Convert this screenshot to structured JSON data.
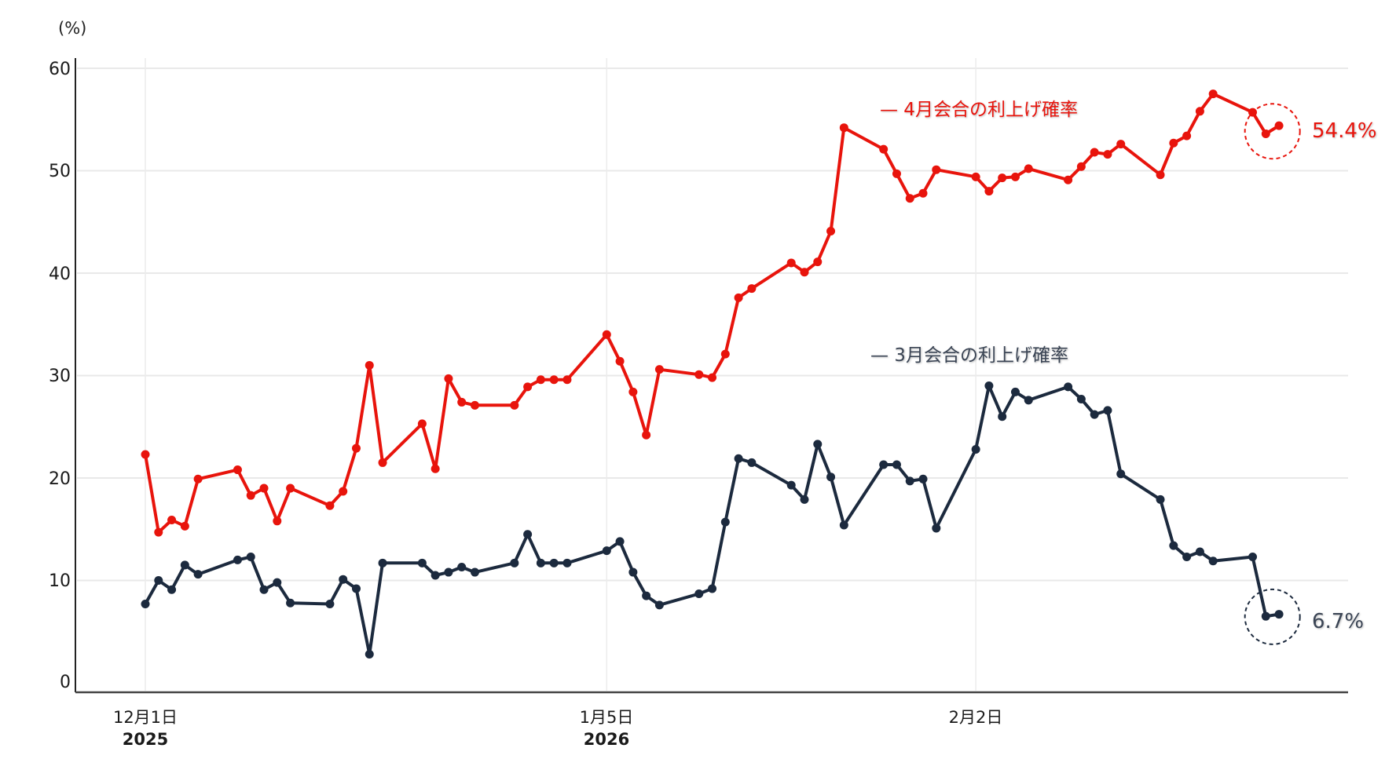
{
  "chart_data": {
    "type": "line",
    "title": "",
    "ylabel": "(%)",
    "xlabel": "",
    "ylim": [
      0,
      60
    ],
    "yticks": [
      0,
      10,
      20,
      30,
      40,
      50,
      60
    ],
    "grid": true,
    "xticks": [
      {
        "label": "12月1日",
        "year": "2025",
        "day_index": 0
      },
      {
        "label": "1月5日",
        "year": "2026",
        "day_index": 35
      },
      {
        "label": "2月2日",
        "year": "",
        "day_index": 63
      }
    ],
    "x": [
      "2025-12-01",
      "2025-12-02",
      "2025-12-03",
      "2025-12-04",
      "2025-12-05",
      "2025-12-08",
      "2025-12-09",
      "2025-12-10",
      "2025-12-11",
      "2025-12-12",
      "2025-12-15",
      "2025-12-16",
      "2025-12-17",
      "2025-12-18",
      "2025-12-19",
      "2025-12-22",
      "2025-12-23",
      "2025-12-24",
      "2025-12-25",
      "2025-12-26",
      "2025-12-29",
      "2025-12-30",
      "2025-12-31",
      "2026-01-01",
      "2026-01-02",
      "2026-01-05",
      "2026-01-06",
      "2026-01-07",
      "2026-01-08",
      "2026-01-09",
      "2026-01-12",
      "2026-01-13",
      "2026-01-14",
      "2026-01-15",
      "2026-01-16",
      "2026-01-19",
      "2026-01-20",
      "2026-01-21",
      "2026-01-22",
      "2026-01-23",
      "2026-01-26",
      "2026-01-27",
      "2026-01-28",
      "2026-01-29",
      "2026-01-30",
      "2026-02-02",
      "2026-02-03",
      "2026-02-04",
      "2026-02-05",
      "2026-02-06",
      "2026-02-09",
      "2026-02-10",
      "2026-02-11",
      "2026-02-12",
      "2026-02-13",
      "2026-02-16",
      "2026-02-17",
      "2026-02-18",
      "2026-02-19",
      "2026-02-20",
      "2026-02-23",
      "2026-02-24",
      "2026-02-25"
    ],
    "day_index": [
      0,
      1,
      2,
      3,
      4,
      7,
      8,
      9,
      10,
      11,
      14,
      15,
      16,
      17,
      18,
      21,
      22,
      23,
      24,
      25,
      28,
      29,
      30,
      31,
      32,
      35,
      36,
      37,
      38,
      39,
      42,
      43,
      44,
      45,
      46,
      49,
      50,
      51,
      52,
      53,
      56,
      57,
      58,
      59,
      60,
      63,
      64,
      65,
      66,
      67,
      70,
      71,
      72,
      73,
      74,
      77,
      78,
      79,
      80,
      81,
      84,
      85,
      86
    ],
    "series": [
      {
        "name": "4月会合の利上げ確率",
        "color": "#e8140c",
        "end_label": "54.4%",
        "values": [
          22.3,
          14.7,
          15.9,
          15.3,
          19.9,
          20.8,
          18.3,
          19.0,
          15.8,
          19.0,
          17.3,
          18.7,
          22.9,
          31.0,
          21.5,
          25.3,
          20.9,
          29.7,
          27.4,
          27.1,
          27.1,
          28.9,
          29.6,
          29.6,
          29.6,
          34.0,
          31.4,
          28.4,
          24.2,
          30.6,
          30.1,
          29.8,
          32.1,
          37.6,
          38.5,
          41.0,
          40.1,
          41.1,
          44.1,
          54.2,
          52.1,
          49.7,
          47.3,
          47.8,
          50.1,
          49.4,
          48.0,
          49.3,
          49.4,
          50.2,
          49.1,
          50.4,
          51.8,
          51.6,
          52.6,
          49.6,
          52.7,
          53.4,
          55.8,
          57.5,
          55.7,
          53.6,
          54.4
        ]
      },
      {
        "name": "3月会合の利上げ確率",
        "color": "#1c2a3e",
        "end_label": "6.7%",
        "values": [
          7.7,
          10.0,
          9.1,
          11.5,
          10.6,
          12.0,
          12.3,
          9.1,
          9.8,
          7.8,
          7.7,
          10.1,
          9.2,
          2.8,
          11.7,
          11.7,
          10.5,
          10.8,
          11.3,
          10.8,
          11.7,
          14.5,
          11.7,
          11.7,
          11.7,
          12.9,
          13.8,
          10.8,
          8.5,
          7.6,
          8.7,
          9.2,
          15.7,
          21.9,
          21.5,
          19.3,
          17.9,
          23.3,
          20.1,
          15.4,
          21.3,
          21.3,
          19.7,
          19.9,
          15.1,
          22.8,
          29.0,
          26.0,
          28.4,
          27.6,
          28.9,
          27.7,
          26.2,
          26.6,
          20.4,
          17.9,
          13.4,
          12.3,
          12.8,
          11.9,
          12.3,
          6.5,
          6.7
        ]
      }
    ],
    "annotations": [
      {
        "text": "— 4月会合の利上げ確率",
        "series": 0,
        "type": "legend-label"
      },
      {
        "text": "— 3月会合の利上げ確率",
        "series": 1,
        "type": "legend-label"
      },
      {
        "text": "54.4%",
        "series": 0,
        "type": "end-value",
        "circled": true
      },
      {
        "text": "6.7%",
        "series": 1,
        "type": "end-value",
        "circled": true
      }
    ],
    "legend_position": "inline"
  },
  "axis": {
    "unit": "(%)",
    "y_labels": [
      "60",
      "50",
      "40",
      "30",
      "20",
      "10",
      "0"
    ],
    "x_labels": [
      {
        "date": "12月1日",
        "year": "2025"
      },
      {
        "date": "1月5日",
        "year": "2026"
      },
      {
        "date": "2月2日",
        "year": ""
      }
    ]
  },
  "legend": {
    "april": "— 4月会合の利上げ確率",
    "march": "— 3月会合の利上げ確率"
  },
  "end_values": {
    "april": "54.4%",
    "march": "6.7%"
  }
}
